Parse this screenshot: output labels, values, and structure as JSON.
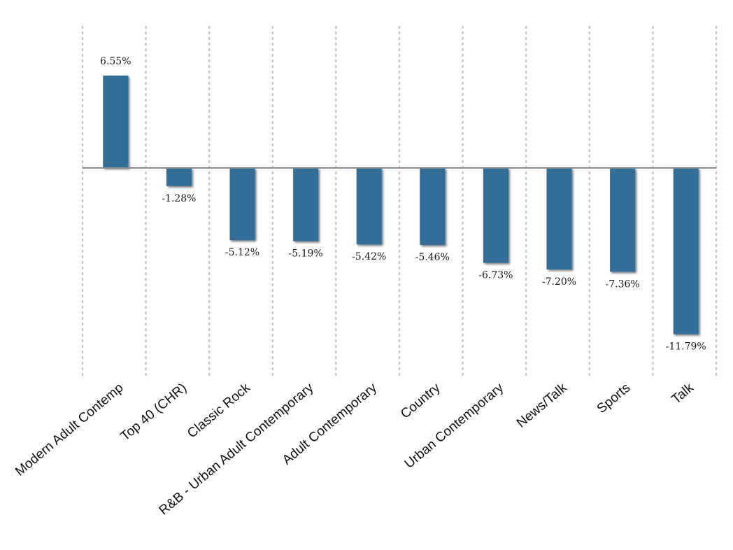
{
  "chart_data": {
    "type": "bar",
    "categories": [
      "Modern Adult Contemp",
      "Top 40 (CHR)",
      "Classic Rock",
      "R&B - Urban Adult Contemporary",
      "Adult Contemporary",
      "Country",
      "Urban Contemporary",
      "News/Talk",
      "Sports",
      "Talk"
    ],
    "values": [
      6.55,
      -1.28,
      -5.12,
      -5.19,
      -5.42,
      -5.46,
      -6.73,
      -7.2,
      -7.36,
      -11.79
    ],
    "value_labels": [
      "6.55%",
      "-1.28%",
      "-5.12%",
      "-5.19%",
      "-5.42%",
      "-5.46%",
      "-6.73%",
      "-7.20%",
      "-7.36%",
      "-11.79%"
    ],
    "title": "",
    "xlabel": "",
    "ylabel": "",
    "ylim": [
      -14.7,
      10
    ],
    "grid": "vertical dotted",
    "bar_color": "#336e99",
    "zero_line_color": "#8a8a8a",
    "grid_color": "#c8c8c8"
  }
}
